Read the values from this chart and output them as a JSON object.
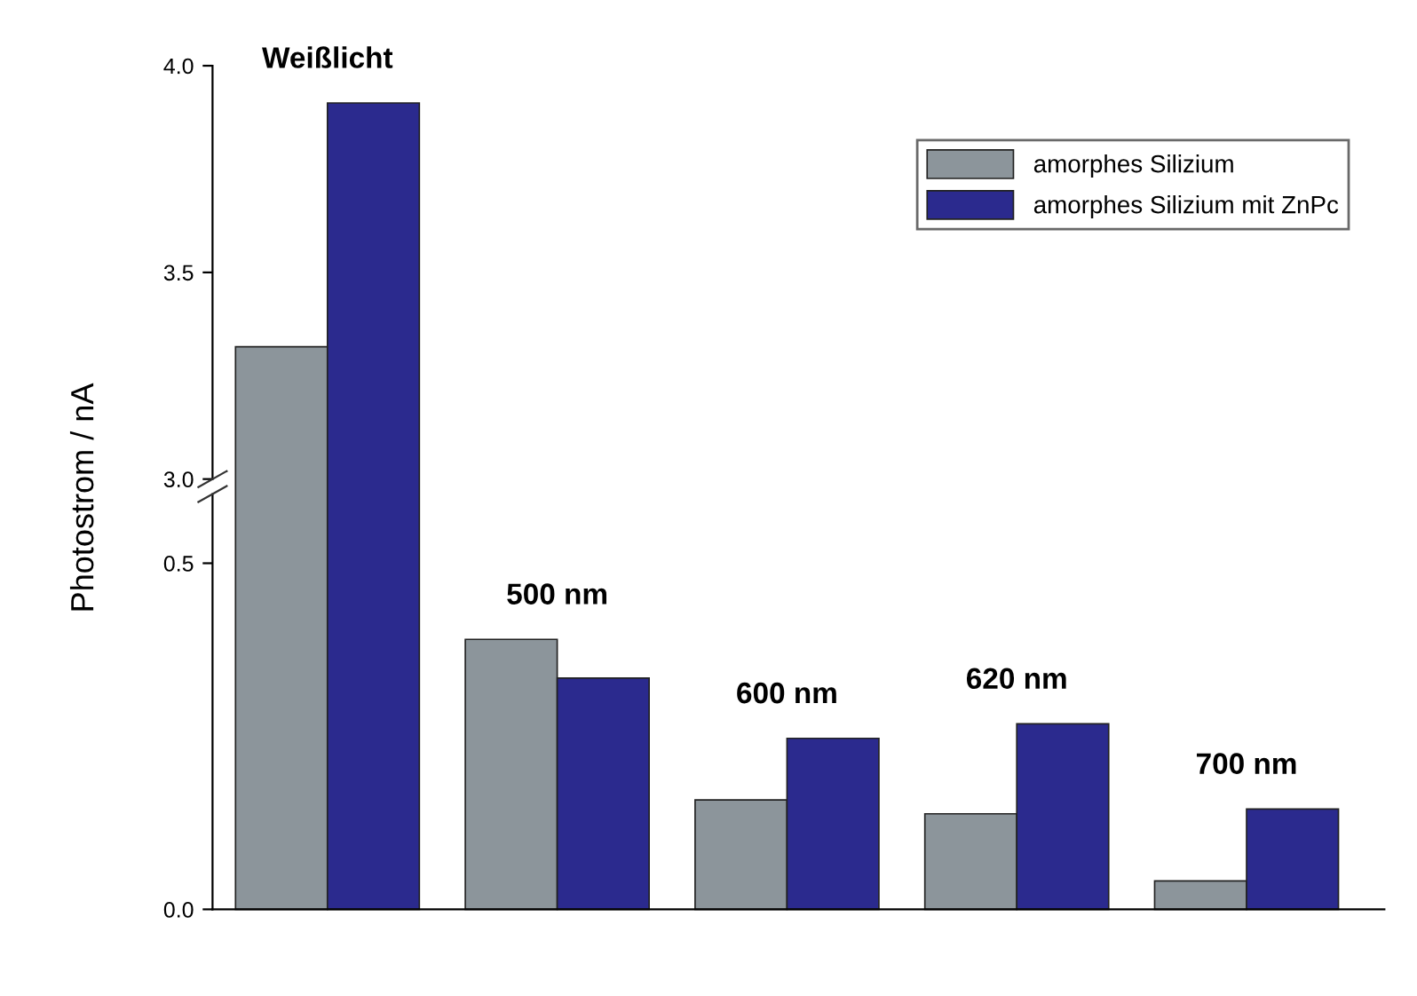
{
  "chart_data": [
    {
      "type": "bar",
      "categories": [
        "Weißlicht",
        null,
        null,
        null,
        null
      ],
      "ylabel": "Photostrom / nA",
      "series": [
        {
          "name": "amorphes Silizium",
          "color": "#8c959b",
          "values": [
            3.32,
            null,
            null,
            null,
            null
          ]
        },
        {
          "name": "amorphes Silizium mit ZnPc",
          "color": "#2b2a8e",
          "values": [
            3.91,
            null,
            null,
            null,
            null
          ]
        }
      ],
      "ylim": [
        3.0,
        4.0
      ],
      "yticks": [
        {
          "value": 3.0,
          "label": "3.0"
        },
        {
          "value": 3.5,
          "label": "3.5"
        },
        {
          "value": 4.0,
          "label": "4.0"
        }
      ],
      "legend": "top right",
      "tick_labels": "y",
      "grid": false
    },
    {
      "type": "bar",
      "categories": [
        null,
        "500 nm",
        "600 nm",
        "620 nm",
        "700 nm"
      ],
      "series": [
        {
          "color": "#8c959b",
          "values": [
            null,
            0.39,
            0.158,
            0.138,
            0.041
          ]
        },
        {
          "color": "#2b2a8e",
          "values": [
            null,
            0.334,
            0.247,
            0.268,
            0.145
          ]
        }
      ],
      "ylim": [
        0.0,
        0.6
      ],
      "yticks": [
        {
          "value": 0.0,
          "label": "0.0"
        },
        {
          "value": 0.5,
          "label": "0.5"
        }
      ],
      "tick_labels": "y",
      "grid": false
    }
  ]
}
